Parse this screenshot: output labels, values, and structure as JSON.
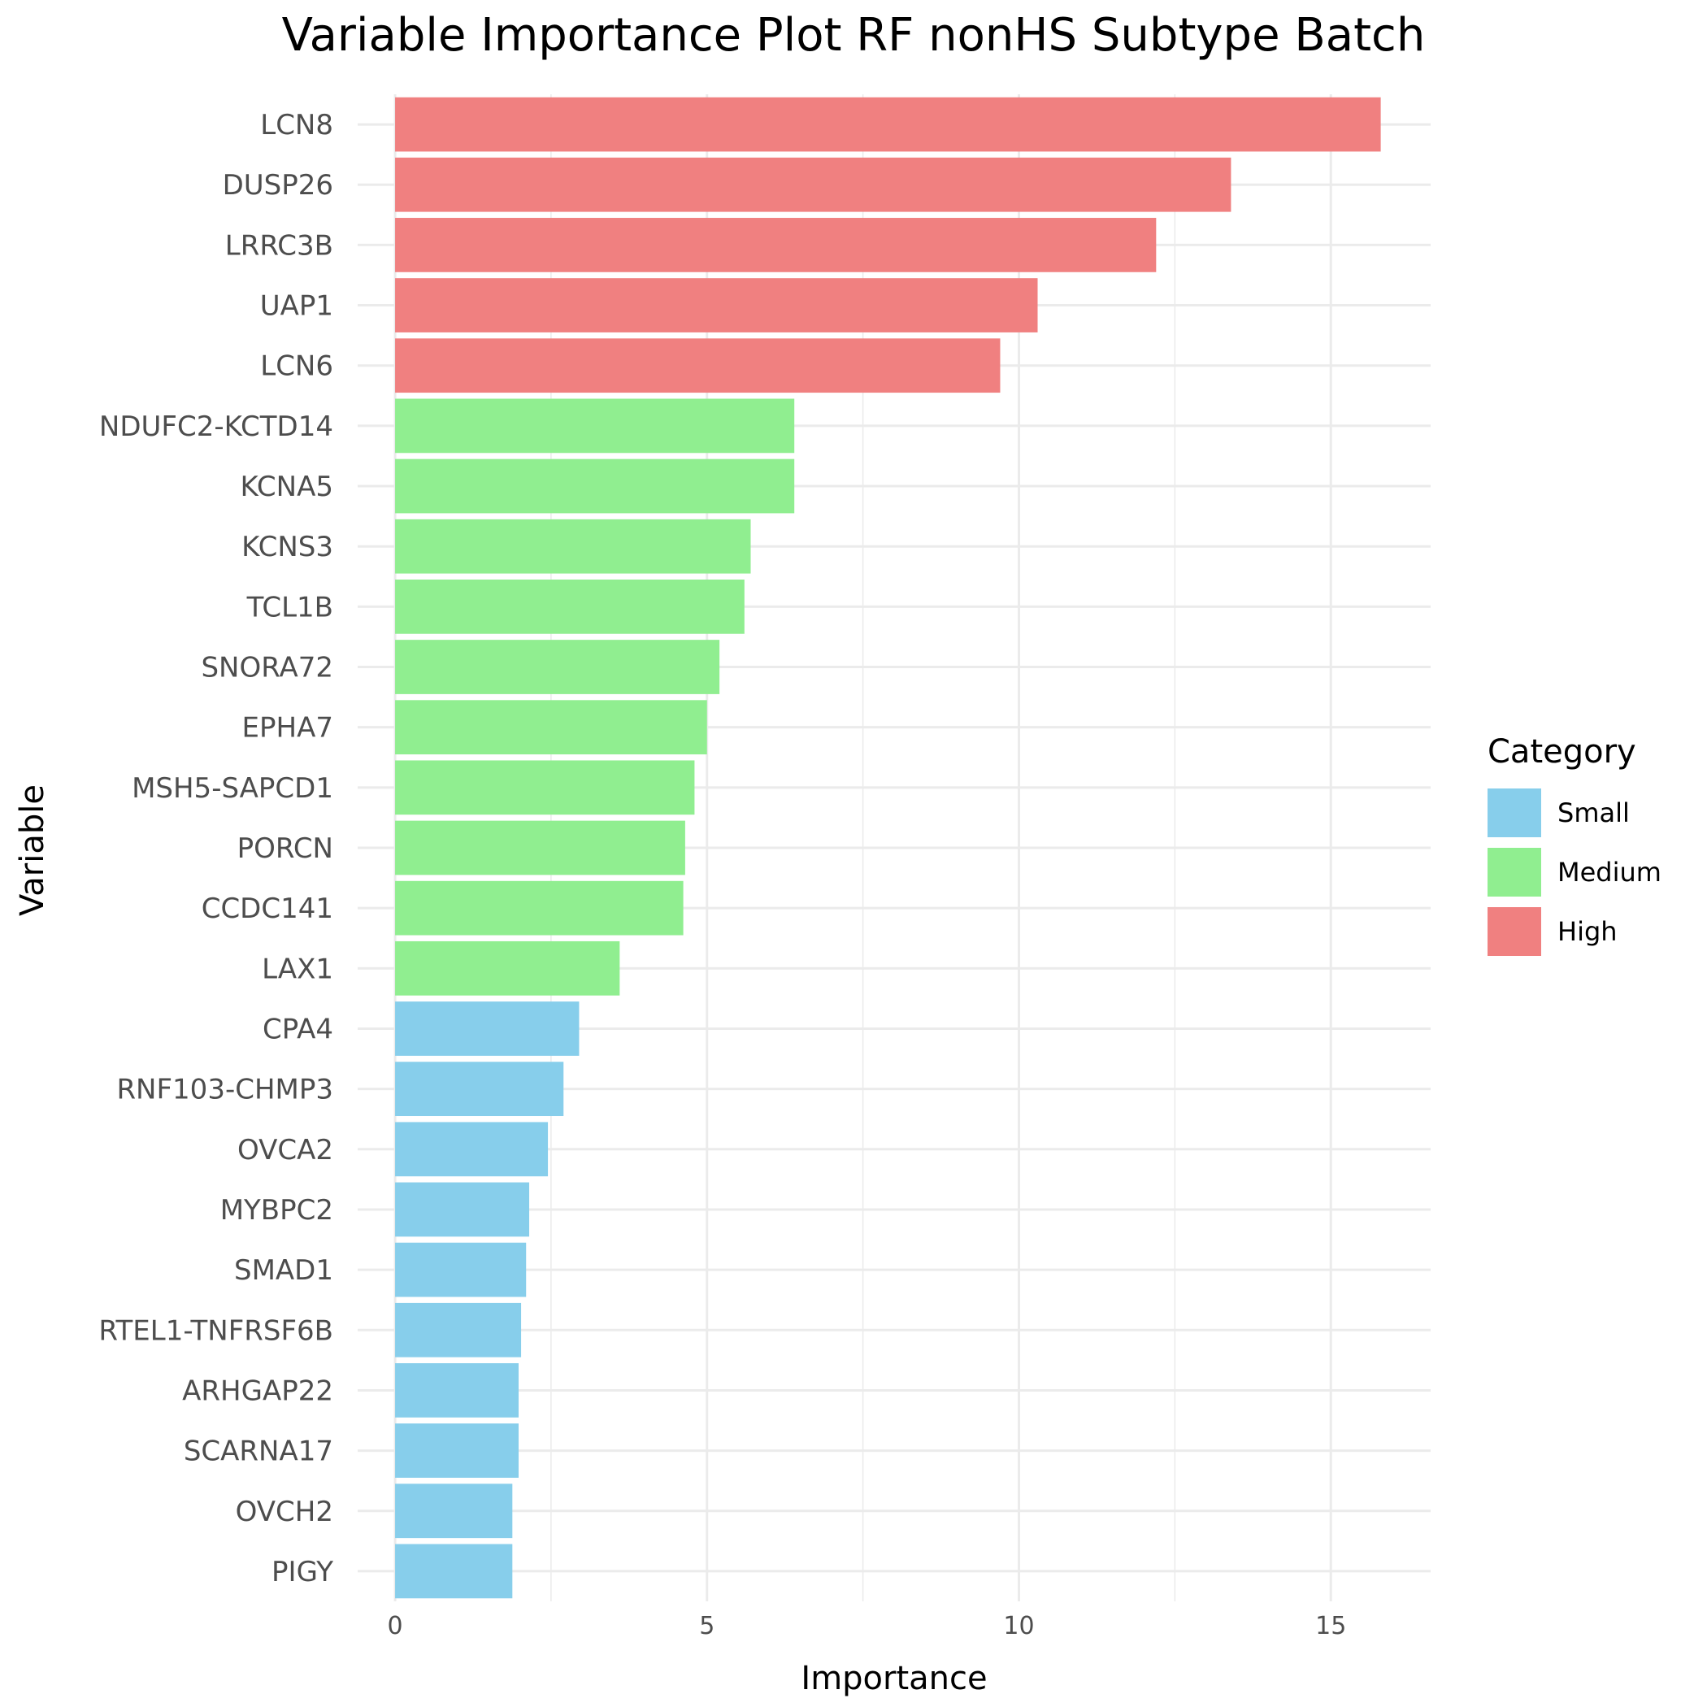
{
  "chart_data": {
    "type": "bar",
    "orientation": "horizontal",
    "title": "Variable Importance Plot RF nonHS Subtype Batch",
    "xlabel": "Importance",
    "ylabel": "Variable",
    "xlim": [
      -0.6,
      16.6
    ],
    "xticks": [
      0,
      5,
      10,
      15
    ],
    "xtick_labels": [
      "0",
      "5",
      "10",
      "15"
    ],
    "grid": true,
    "legend": {
      "title": "Category",
      "position": "right",
      "entries": [
        {
          "label": "Small",
          "color": "#87CEEB"
        },
        {
          "label": "Medium",
          "color": "#90EE90"
        },
        {
          "label": "High",
          "color": "#F08080"
        }
      ]
    },
    "categories": [
      "LCN8",
      "DUSP26",
      "LRRC3B",
      "UAP1",
      "LCN6",
      "NDUFC2-KCTD14",
      "KCNA5",
      "KCNS3",
      "TCL1B",
      "SNORA72",
      "EPHA7",
      "MSH5-SAPCD1",
      "PORCN",
      "CCDC141",
      "LAX1",
      "CPA4",
      "RNF103-CHMP3",
      "OVCA2",
      "MYBPC2",
      "SMAD1",
      "RTEL1-TNFRSF6B",
      "ARHGAP22",
      "SCARNA17",
      "OVCH2",
      "PIGY"
    ],
    "values": [
      15.8,
      13.4,
      12.2,
      10.3,
      9.7,
      6.4,
      6.4,
      5.7,
      5.6,
      5.2,
      5.0,
      4.8,
      4.65,
      4.62,
      3.6,
      2.95,
      2.7,
      2.45,
      2.15,
      2.1,
      2.02,
      1.98,
      1.98,
      1.88,
      1.88
    ],
    "bar_categories": [
      "High",
      "High",
      "High",
      "High",
      "High",
      "Medium",
      "Medium",
      "Medium",
      "Medium",
      "Medium",
      "Medium",
      "Medium",
      "Medium",
      "Medium",
      "Medium",
      "Small",
      "Small",
      "Small",
      "Small",
      "Small",
      "Small",
      "Small",
      "Small",
      "Small",
      "Small"
    ]
  }
}
